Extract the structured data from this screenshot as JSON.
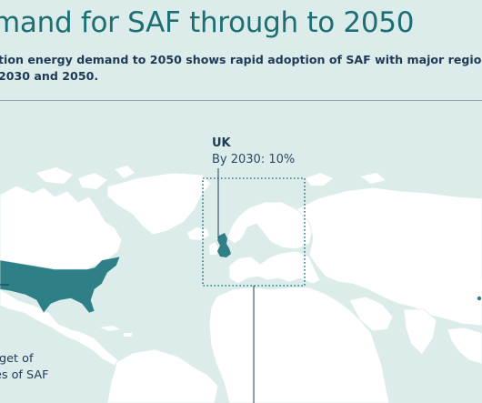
{
  "title": "mand for SAF through to 2050",
  "subtitle": {
    "line1": "tion energy demand to 2050 shows rapid adoption of SAF with major regions",
    "line2": "2030 and 2050."
  },
  "uk_callout": {
    "name": "UK",
    "target": "By 2030: 10%"
  },
  "us_callout": {
    "line1": "rget of",
    "line2": "es of SAF"
  },
  "colors": {
    "background": "#dbeceb",
    "land": "#ffffff",
    "highlight": "#2e7f86",
    "title": "#1e6f74",
    "text": "#1e3a55"
  }
}
